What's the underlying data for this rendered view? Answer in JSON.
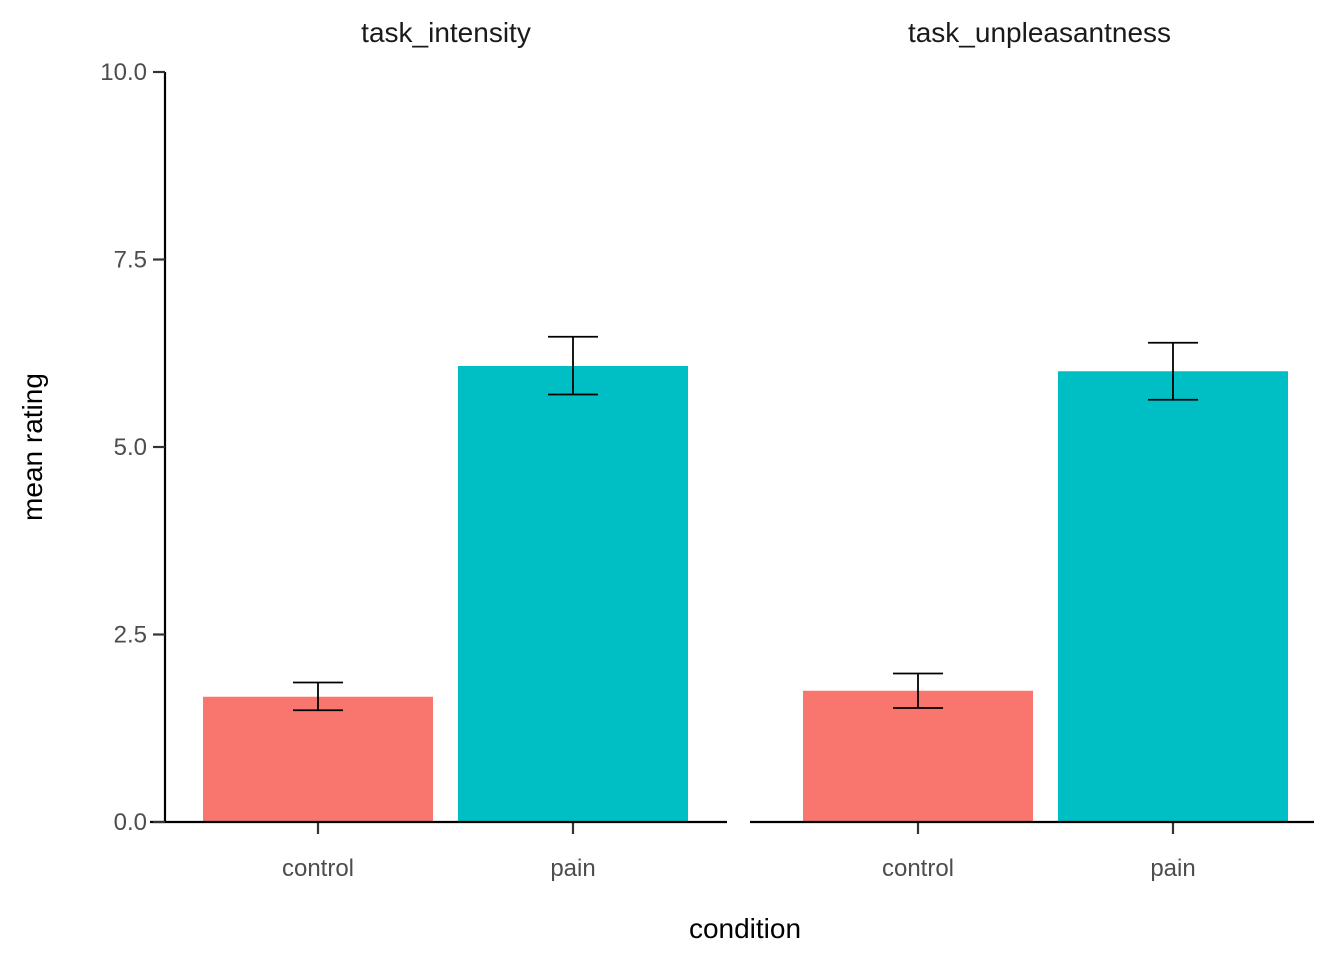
{
  "chart_data": {
    "type": "bar",
    "facet_by": "task",
    "xlabel": "condition",
    "ylabel": "mean rating",
    "ylim": [
      0,
      10
    ],
    "yticks": [
      0,
      2.5,
      5,
      7.5,
      10
    ],
    "ytick_labels": [
      "0.0",
      "2.5",
      "5.0",
      "7.5",
      "10.0"
    ],
    "grid": false,
    "legend": "none",
    "categories": [
      "control",
      "pain"
    ],
    "colors": {
      "control": "#F8766D",
      "pain": "#00BFC4"
    },
    "facets": [
      {
        "name": "task_intensity",
        "values": [
          1.67,
          6.08
        ],
        "error_low": [
          1.49,
          5.7
        ],
        "error_high": [
          1.86,
          6.47
        ]
      },
      {
        "name": "task_unpleasantness",
        "values": [
          1.75,
          6.01
        ],
        "error_low": [
          1.52,
          5.63
        ],
        "error_high": [
          1.98,
          6.39
        ]
      }
    ]
  }
}
